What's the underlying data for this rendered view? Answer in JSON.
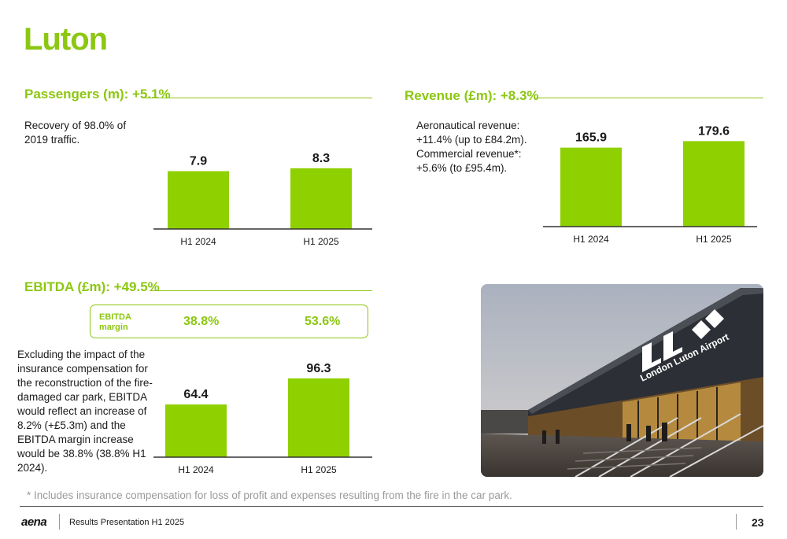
{
  "page": {
    "title": "Luton",
    "footnote": "* Includes insurance compensation for loss of profit and expenses resulting from the fire in the car park.",
    "footer": {
      "logo": "aena",
      "presentation": "Results Presentation H1 2025",
      "page_number": "23"
    }
  },
  "passengers": {
    "title": "Passengers (m): +5.1%",
    "note_line1": "Recovery of 98.0% of",
    "note_line2": "2019 traffic."
  },
  "revenue": {
    "title": "Revenue (£m): +8.3%",
    "note_lines": [
      "Aeronautical revenue:",
      "+11.4% (up to £84.2m).",
      "Commercial revenue*:",
      "+5.6% (to £95.4m)."
    ]
  },
  "ebitda": {
    "title": "EBITDA (£m): +49.5%",
    "margin_label_line1": "EBITDA",
    "margin_label_line2": "margin",
    "margin_h1_2024": "38.8%",
    "margin_h1_2025": "53.6%",
    "note_lines": [
      "Excluding the impact of the",
      "insurance compensation for",
      "the reconstruction of the fire-",
      "damaged car park, EBITDA",
      "would reflect an increase of",
      "8.2% (+£5.3m) and the",
      "EBITDA margin increase",
      "would be 38.8% (38.8% H1",
      "2024)."
    ]
  },
  "photo": {
    "sign_text": "London Luton Airport"
  },
  "colors": {
    "accent": "#8cc711",
    "bar": "#8fd000",
    "text": "#1a1a1a",
    "footnote": "#9a9a9a"
  },
  "chart_data": [
    {
      "type": "bar",
      "name_key": "passengers",
      "categories": [
        "H1 2024",
        "H1 2025"
      ],
      "values": [
        7.9,
        8.3
      ],
      "labels": [
        "7.9",
        "8.3"
      ]
    },
    {
      "type": "bar",
      "name_key": "revenue",
      "categories": [
        "H1 2024",
        "H1 2025"
      ],
      "values": [
        165.9,
        179.6
      ],
      "labels": [
        "165.9",
        "179.6"
      ]
    },
    {
      "type": "bar",
      "name_key": "ebitda",
      "categories": [
        "H1 2024",
        "H1 2025"
      ],
      "values": [
        64.4,
        96.3
      ],
      "labels": [
        "64.4",
        "96.3"
      ]
    }
  ]
}
